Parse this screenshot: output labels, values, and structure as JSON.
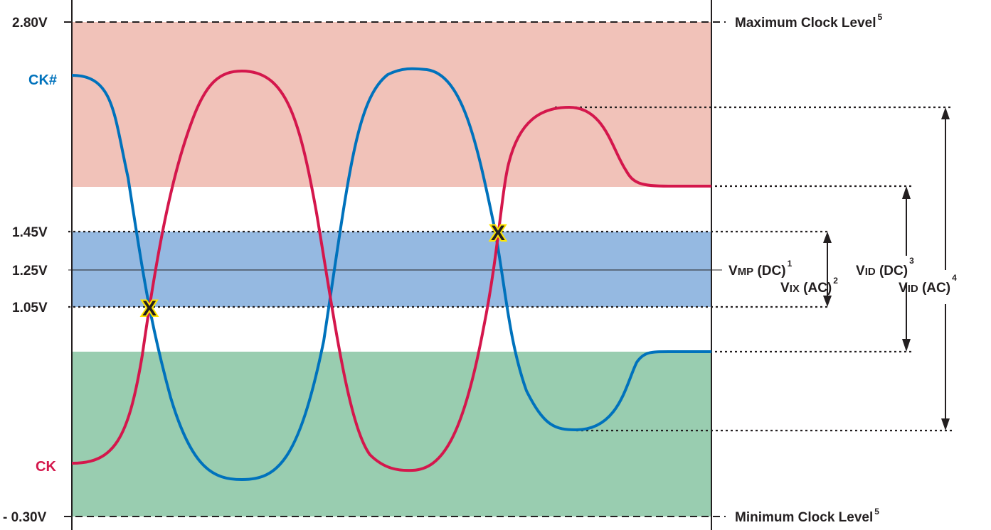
{
  "colors": {
    "ck": "#d4174c",
    "ck_hash": "#0072bc",
    "upper_zone": "#f1c2b9",
    "mid_zone": "#95b9e1",
    "lower_zone": "#99cdb0",
    "crosspoint_outline": "#ffe600"
  },
  "levels": {
    "v280": "2.80V",
    "v145": "1.45V",
    "v125": "1.25V",
    "v105": "1.05V",
    "vm030": "- 0.30V"
  },
  "signals": {
    "ck_hash": "CK#",
    "ck": "CK"
  },
  "right_labels": {
    "max_clock": "Maximum Clock Level",
    "max_clock_note": "5",
    "min_clock": "Minimum Clock Level",
    "min_clock_note": "5"
  },
  "params": {
    "vmp_v": "V",
    "vmp_sub": "MP",
    "vmp_rest": " (DC)",
    "vmp_note": "1",
    "vix_v": "V",
    "vix_sub": "IX",
    "vix_rest": " (AC)",
    "vix_note": "2",
    "vid_dc_v": "V",
    "vid_dc_sub": "ID",
    "vid_dc_rest": " (DC)",
    "vid_dc_note": "3",
    "vid_ac_v": "V",
    "vid_ac_sub": "ID",
    "vid_ac_rest": " (AC)",
    "vid_ac_note": "4"
  },
  "crosspoint_mark": "X"
}
